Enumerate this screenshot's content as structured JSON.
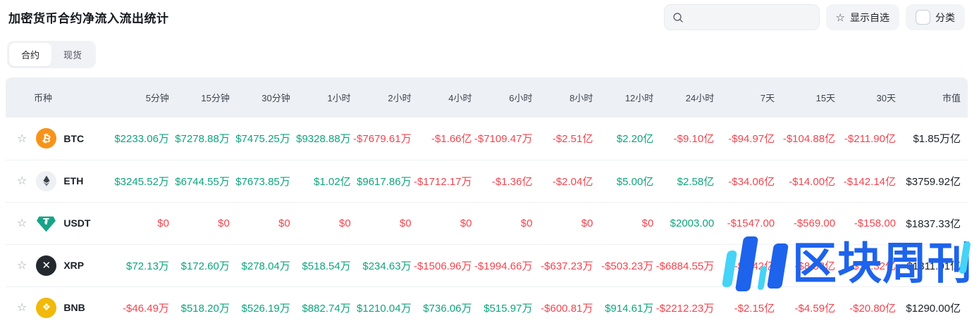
{
  "header": {
    "title": "加密货币合约净流入流出统计",
    "search": {
      "placeholder": ""
    },
    "watchlist_button_label": "显示自选",
    "category_label": "分类"
  },
  "tabs": [
    {
      "label": "合约",
      "active": true
    },
    {
      "label": "现货",
      "active": false
    }
  ],
  "watermark_text": "区块周刊",
  "colors": {
    "positive": "#0fa37e",
    "negative": "#f1454f",
    "header_bg": "#edf0f4",
    "watermark_blue": "#1e63eb",
    "watermark_cyan": "#45d3f7"
  },
  "table": {
    "columns": [
      "币种",
      "5分钟",
      "15分钟",
      "30分钟",
      "1小时",
      "2小时",
      "4小时",
      "6小时",
      "8小时",
      "12小时",
      "24小时",
      "7天",
      "15天",
      "30天",
      "市值"
    ],
    "rows": [
      {
        "symbol": "BTC",
        "icon": "btc-icon",
        "icon_bg": "#F7931A",
        "values": [
          "$2233.06万",
          "$7278.88万",
          "$7475.25万",
          "$9328.88万",
          "-$7679.61万",
          "-$1.66亿",
          "-$7109.47万",
          "-$2.51亿",
          "$2.20亿",
          "-$9.10亿",
          "-$94.97亿",
          "-$104.88亿",
          "-$211.90亿"
        ],
        "market_cap": "$1.85万亿"
      },
      {
        "symbol": "ETH",
        "icon": "eth-icon",
        "icon_bg": "#eef0f3",
        "values": [
          "$3245.52万",
          "$6744.55万",
          "$7673.85万",
          "$1.02亿",
          "$9617.86万",
          "-$1712.17万",
          "-$1.36亿",
          "-$2.04亿",
          "$5.00亿",
          "$2.58亿",
          "-$34.06亿",
          "-$14.00亿",
          "-$142.14亿"
        ],
        "market_cap": "$3759.92亿"
      },
      {
        "symbol": "USDT",
        "icon": "usdt-icon",
        "icon_bg": "#17a289",
        "values": [
          "$0",
          "$0",
          "$0",
          "$0",
          "$0",
          "$0",
          "$0",
          "$0",
          "$0",
          "$2003.00",
          "-$1547.00",
          "-$569.00",
          "-$158.00"
        ],
        "market_cap": "$1837.33亿"
      },
      {
        "symbol": "XRP",
        "icon": "xrp-icon",
        "icon_bg": "#23292F",
        "values": [
          "$72.13万",
          "$172.60万",
          "$278.04万",
          "$518.54万",
          "$234.63万",
          "-$1506.96万",
          "-$1994.66万",
          "-$637.23万",
          "-$503.23万",
          "-$6884.55万",
          "-$6.42亿",
          "-$8.88亿",
          "-$19.32亿"
        ],
        "market_cap": "$1311.01亿"
      },
      {
        "symbol": "BNB",
        "icon": "bnb-icon",
        "icon_bg": "#F0B90B",
        "values": [
          "-$46.49万",
          "$518.20万",
          "$526.19万",
          "$882.74万",
          "$1210.04万",
          "$736.06万",
          "$515.97万",
          "-$600.81万",
          "$914.61万",
          "-$2212.23万",
          "-$2.15亿",
          "-$4.59亿",
          "-$20.80亿"
        ],
        "market_cap": "$1290.00亿"
      }
    ]
  }
}
